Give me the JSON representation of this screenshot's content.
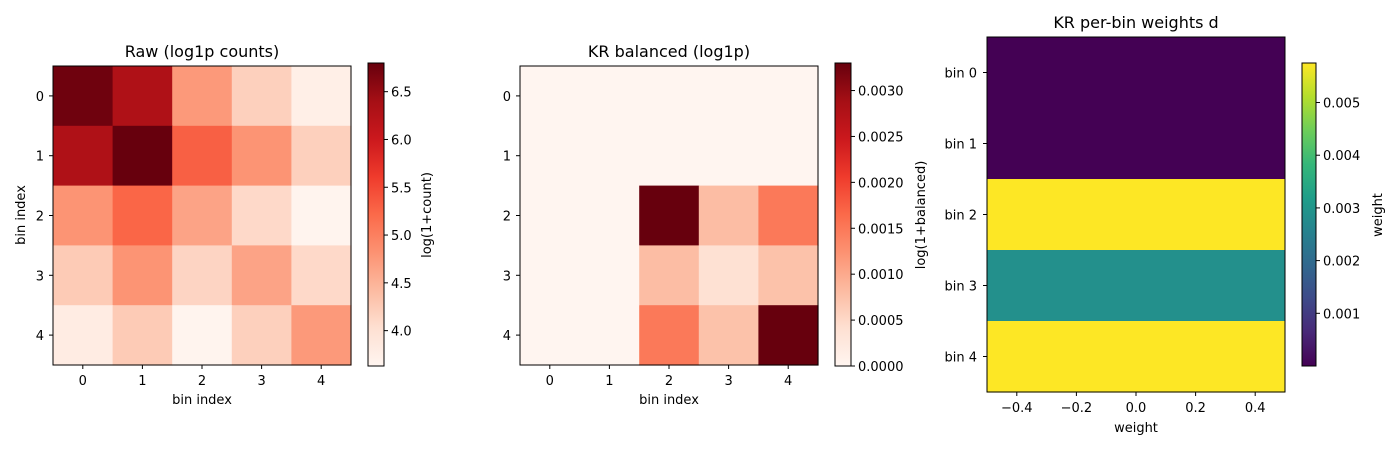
{
  "chart_data": [
    {
      "type": "heatmap",
      "title": "Raw (log1p counts)",
      "xlabel": "bin index",
      "ylabel": "bin index",
      "x_ticks": [
        "0",
        "1",
        "2",
        "3",
        "4"
      ],
      "y_ticks": [
        "0",
        "1",
        "2",
        "3",
        "4"
      ],
      "matrix": [
        [
          6.75,
          6.3,
          4.75,
          4.2,
          3.75
        ],
        [
          6.3,
          6.8,
          5.3,
          4.8,
          4.2
        ],
        [
          4.8,
          5.25,
          4.65,
          4.1,
          3.65
        ],
        [
          4.25,
          4.8,
          4.15,
          4.65,
          4.1
        ],
        [
          3.8,
          4.25,
          3.65,
          4.2,
          4.75
        ]
      ],
      "colormap": "Reds",
      "vmin": 3.63,
      "vmax": 6.8,
      "colorbar": {
        "label": "log(1+count)",
        "ticks": [
          4.0,
          4.5,
          5.0,
          5.5,
          6.0,
          6.5
        ],
        "tick_labels": [
          "4.0",
          "4.5",
          "5.0",
          "5.5",
          "6.0",
          "6.5"
        ]
      }
    },
    {
      "type": "heatmap",
      "title": "KR balanced (log1p)",
      "xlabel": "bin index",
      "ylabel": "",
      "x_ticks": [
        "0",
        "1",
        "2",
        "3",
        "4"
      ],
      "y_ticks": [
        "0",
        "1",
        "2",
        "3",
        "4"
      ],
      "matrix": [
        [
          0,
          0,
          0,
          0,
          0
        ],
        [
          0,
          0,
          0,
          0,
          0
        ],
        [
          0,
          0,
          0.0033,
          0.0008,
          0.0015
        ],
        [
          0,
          0,
          0.0008,
          0.0004,
          0.00075
        ],
        [
          0,
          0,
          0.0015,
          0.00075,
          0.0033
        ]
      ],
      "colormap": "Reds",
      "vmin": 0,
      "vmax": 0.0033,
      "colorbar": {
        "label": "log(1+balanced)",
        "ticks": [
          0,
          0.0005,
          0.001,
          0.0015,
          0.002,
          0.0025,
          0.003
        ],
        "tick_labels": [
          "0.0000",
          "0.0005",
          "0.0010",
          "0.0015",
          "0.0020",
          "0.0025",
          "0.0030"
        ]
      }
    },
    {
      "type": "heatmap",
      "title": "KR per-bin weights d",
      "xlabel": "weight",
      "ylabel": "",
      "x_ticks": [
        "−0.4",
        "−0.2",
        "0.0",
        "0.2",
        "0.4"
      ],
      "y_ticks": [
        "bin 0",
        "bin 1",
        "bin 2",
        "bin 3",
        "bin 4"
      ],
      "x_range": [
        -0.5,
        0.5
      ],
      "x_tick_values": [
        -0.4,
        -0.2,
        0.0,
        0.2,
        0.4
      ],
      "values": [
        0,
        0,
        0.00575,
        0.00287,
        0.00575
      ],
      "colormap": "viridis",
      "vmin": 0,
      "vmax": 0.00575,
      "colorbar": {
        "label": "weight",
        "ticks": [
          0.001,
          0.002,
          0.003,
          0.004,
          0.005
        ],
        "tick_labels": [
          "0.001",
          "0.002",
          "0.003",
          "0.004",
          "0.005"
        ]
      }
    }
  ]
}
